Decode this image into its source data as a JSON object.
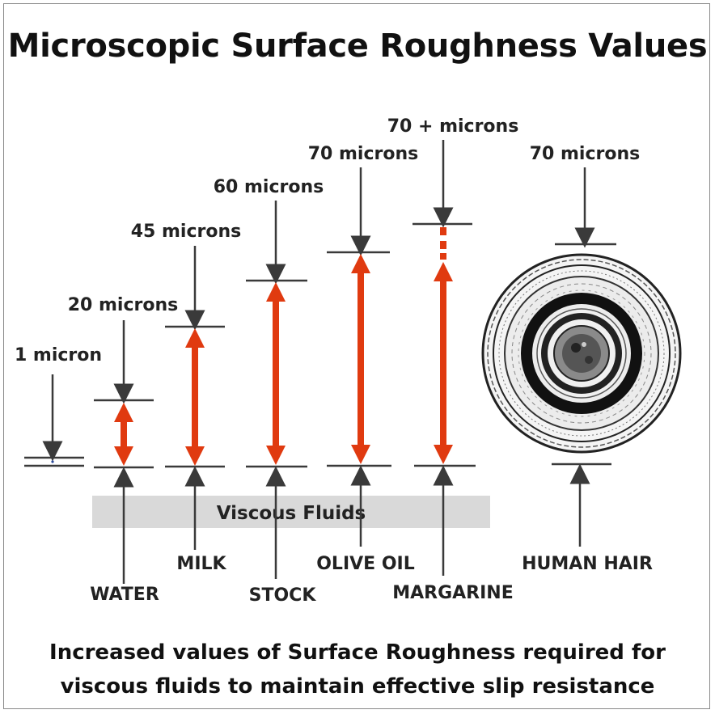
{
  "title": "Microscopic Surface Roughness Values",
  "band_label": "Viscous Fluids",
  "caption": {
    "line1": "Increased values of Surface Roughness required for",
    "line2": "viscous fluids to maintain effective slip resistance"
  },
  "items": [
    {
      "value_label": "1 micron",
      "name": "",
      "microns": 1
    },
    {
      "value_label": "20 microns",
      "name": "WATER",
      "microns": 20
    },
    {
      "value_label": "45 microns",
      "name": "MILK",
      "microns": 45
    },
    {
      "value_label": "60 microns",
      "name": "STOCK",
      "microns": 60
    },
    {
      "value_label": "70 microns",
      "name": "OLIVE OIL",
      "microns": 70
    },
    {
      "value_label": "70 + microns",
      "name": "MARGARINE",
      "microns": 70
    },
    {
      "value_label": "70 microns",
      "name": "HUMAN HAIR",
      "microns": 70
    }
  ],
  "colors": {
    "arrow": "#e03a10",
    "line": "#3a3a3a",
    "band": "#d9d9d9"
  },
  "icons": {
    "hair": "hair-cross-section-icon"
  }
}
